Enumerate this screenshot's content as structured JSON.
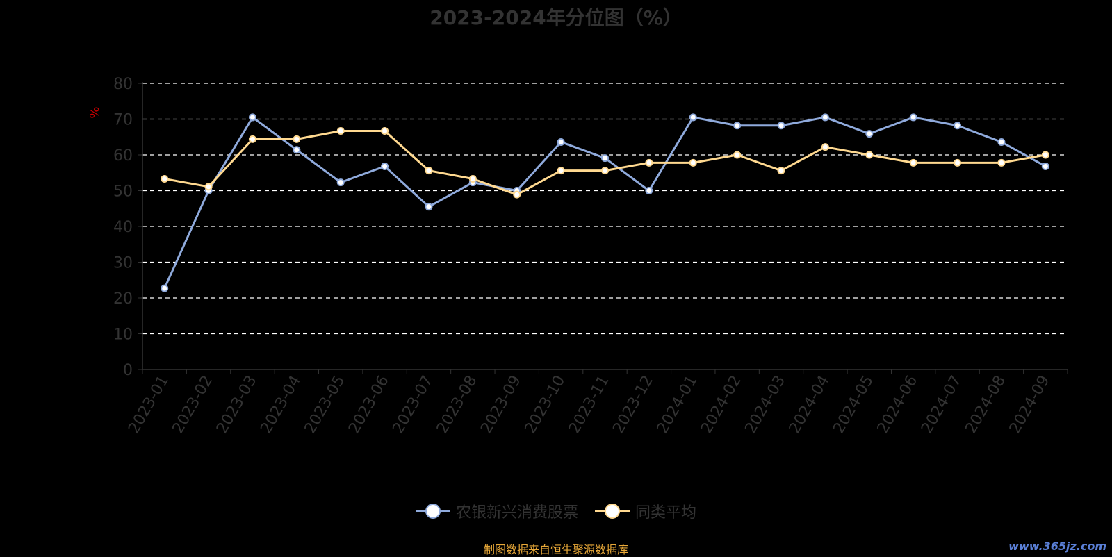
{
  "chart_data": {
    "type": "line",
    "title": "2023-2024年分位图（%）",
    "ylabel": "%",
    "xlabel": "",
    "ylim": [
      0,
      80
    ],
    "yticks": [
      0,
      10,
      20,
      30,
      40,
      50,
      60,
      70,
      80
    ],
    "grid": true,
    "legend_position": "bottom",
    "categories": [
      "2023-01",
      "2023-02",
      "2023-03",
      "2023-04",
      "2023-05",
      "2023-06",
      "2023-07",
      "2023-08",
      "2023-09",
      "2023-10",
      "2023-11",
      "2023-12",
      "2024-01",
      "2024-02",
      "2024-03",
      "2024-04",
      "2024-05",
      "2024-06",
      "2024-07",
      "2024-08",
      "2024-09"
    ],
    "series": [
      {
        "name": "农银新兴消费股票",
        "color": "#8faadc",
        "values": [
          22.7,
          50.0,
          70.5,
          61.4,
          52.3,
          56.8,
          45.5,
          52.3,
          50.0,
          63.6,
          59.1,
          50.0,
          70.5,
          68.2,
          68.2,
          70.5,
          65.9,
          70.5,
          68.2,
          63.6,
          56.8
        ]
      },
      {
        "name": "同类平均",
        "color": "#ffd990",
        "values": [
          53.3,
          51.1,
          64.4,
          64.4,
          66.7,
          66.7,
          55.6,
          53.3,
          48.9,
          55.6,
          55.6,
          57.8,
          57.8,
          60.0,
          55.6,
          62.2,
          60.0,
          57.8,
          57.8,
          57.8,
          60.0
        ]
      }
    ]
  },
  "footer": {
    "source_note": "制图数据来自恒生聚源数据库",
    "watermark": "www.365jz.com"
  },
  "colors": {
    "background": "#000000",
    "grid": "#ffffff",
    "axis": "#333333",
    "ylabel": "#cc0000",
    "source_note": "#e8a838",
    "watermark": "#5a7fd6"
  }
}
